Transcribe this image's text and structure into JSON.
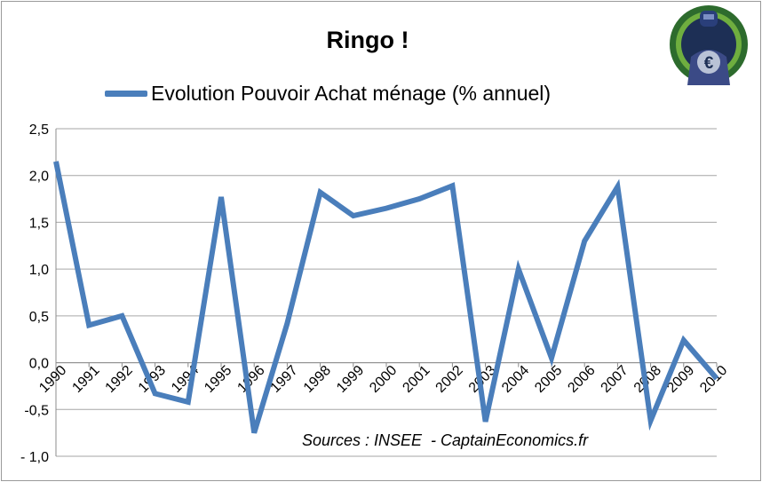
{
  "chart_data": {
    "type": "line",
    "title": "Ringo !",
    "source_note": "Sources : INSEE  - CaptainEconomics.fr",
    "categories": [
      "1990",
      "1991",
      "1992",
      "1993",
      "1994",
      "1995",
      "1996",
      "1997",
      "1998",
      "1999",
      "2000",
      "2001",
      "2002",
      "2003",
      "2004",
      "2005",
      "2006",
      "2007",
      "2008",
      "2009",
      "2010"
    ],
    "series": [
      {
        "name": "Evolution Pouvoir Achat ménage (% annuel)",
        "color": "#4a7ebb",
        "values": [
          2.15,
          0.4,
          0.5,
          -0.33,
          -0.42,
          1.77,
          -0.75,
          0.42,
          1.82,
          1.57,
          1.65,
          1.75,
          1.89,
          -0.63,
          1.0,
          0.05,
          1.3,
          1.88,
          -0.62,
          0.24,
          -0.17
        ]
      }
    ],
    "ylim": [
      -1.0,
      2.5
    ],
    "yticks": [
      "- 1,0",
      "-0,5",
      "0,0",
      "0,5",
      "1,0",
      "1,5",
      "2,0",
      "2,5"
    ],
    "ytick_values": [
      -1.0,
      -0.5,
      0.0,
      0.5,
      1.0,
      1.5,
      2.0,
      2.5
    ],
    "grid": true,
    "legend_position": "top"
  },
  "logo": {
    "icon": "captain-economics-shield-icon",
    "symbol": "€"
  }
}
